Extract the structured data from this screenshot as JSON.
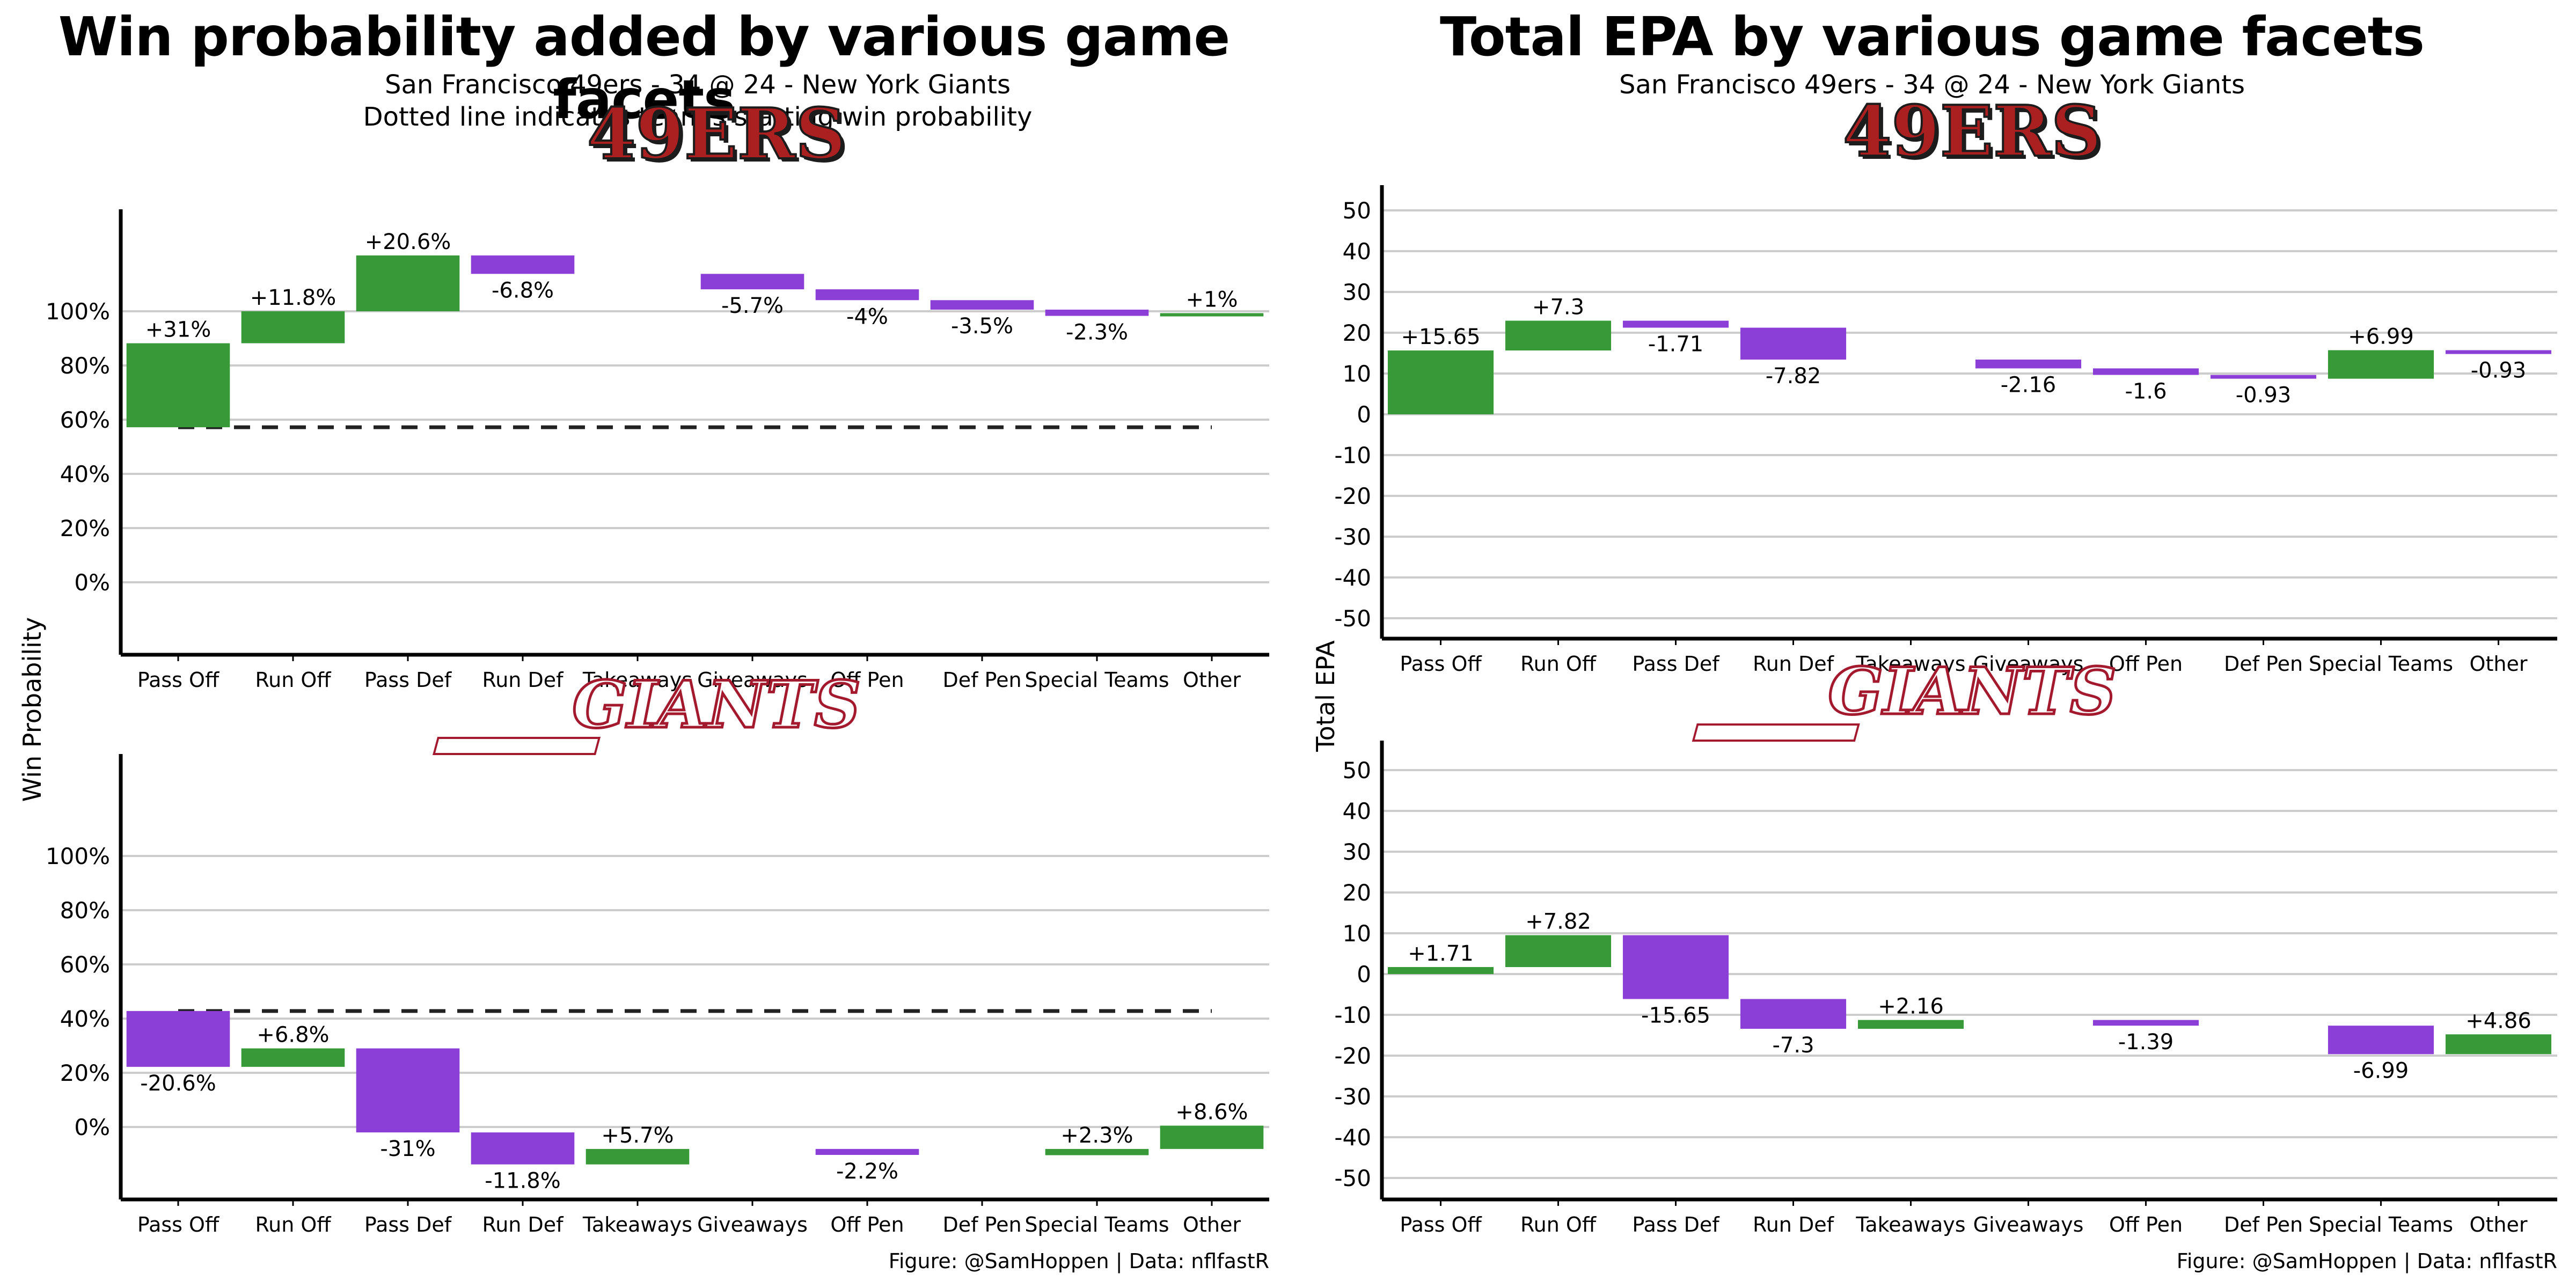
{
  "left_title": "Win probability added by various game facets",
  "left_subtitle_1": "San Francisco 49ers - 34 @ 24 - New York Giants",
  "left_subtitle_2": "Dotted line indicates team's starting win probability",
  "left_ylabel": "Win Probability",
  "right_title": "Total EPA by various game facets",
  "right_subtitle_1": "San Francisco 49ers - 34 @ 24 - New York Giants",
  "right_ylabel": "Total EPA",
  "caption": "Figure: @SamHoppen | Data: nflfastR",
  "logo_sf": "49ERS",
  "logo_nyg": "GIANTS",
  "colors": {
    "positive": "#379937",
    "negative": "#8c3fd6",
    "dotted": "#222222",
    "grid": "#cccccc",
    "logo_sf_fill": "#aa1f1f",
    "logo_nyg_stroke": "#a3192e"
  },
  "chart_data": [
    {
      "type": "waterfall",
      "team": "49ERS",
      "categories": [
        "Pass Off",
        "Run Off",
        "Pass Def",
        "Run Def",
        "Takeaways",
        "Giveaways",
        "Off Pen",
        "Def Pen",
        "Special Teams",
        "Other"
      ],
      "starts": [
        57.2,
        88.2,
        100,
        120.6,
        null,
        113.8,
        108.1,
        104.1,
        100.6,
        98.3
      ],
      "values": [
        31,
        11.8,
        20.6,
        -6.8,
        null,
        -5.7,
        -4,
        -3.5,
        -2.3,
        1
      ],
      "labels": [
        "+31%",
        "+11.8%",
        "+20.6%",
        "-6.8%",
        "",
        "-5.7%",
        "-4%",
        "-3.5%",
        "-2.3%",
        "+1%"
      ],
      "baseline": 57.2,
      "yticks": [
        "0%",
        "20%",
        "40%",
        "60%",
        "80%",
        "100%"
      ],
      "ylim": [
        -27,
        133
      ]
    },
    {
      "type": "waterfall",
      "team": "GIANTS",
      "categories": [
        "Pass Off",
        "Run Off",
        "Pass Def",
        "Run Def",
        "Takeaways",
        "Giveaways",
        "Off Pen",
        "Def Pen",
        "Special Teams",
        "Other"
      ],
      "starts": [
        42.8,
        22.2,
        29,
        -2,
        -13.8,
        null,
        -8.1,
        null,
        -10.4,
        -8.1
      ],
      "values": [
        -20.6,
        6.8,
        -31,
        -11.8,
        5.7,
        null,
        -2.2,
        null,
        2.3,
        8.6
      ],
      "labels": [
        "-20.6%",
        "+6.8%",
        "-31%",
        "-11.8%",
        "+5.7%",
        "",
        "-2.2%",
        "",
        "+2.3%",
        "+8.6%"
      ],
      "baseline": 42.8,
      "yticks": [
        "0%",
        "20%",
        "40%",
        "60%",
        "80%",
        "100%"
      ],
      "ylim": [
        -27,
        133
      ]
    },
    {
      "type": "waterfall",
      "team": "49ERS",
      "categories": [
        "Pass Off",
        "Run Off",
        "Pass Def",
        "Run Def",
        "Takeaways",
        "Giveaways",
        "Off Pen",
        "Def Pen",
        "Special Teams",
        "Other"
      ],
      "starts": [
        0,
        15.65,
        22.95,
        21.24,
        null,
        13.42,
        11.26,
        9.66,
        8.73,
        15.72
      ],
      "values": [
        15.65,
        7.3,
        -1.71,
        -7.82,
        null,
        -2.16,
        -1.6,
        -0.93,
        6.99,
        -0.93
      ],
      "labels": [
        "+15.65",
        "+7.3",
        "-1.71",
        "-7.82",
        "",
        "-2.16",
        "-1.6",
        "-0.93",
        "+6.99",
        "-0.93"
      ],
      "yticks": [
        -50,
        -40,
        -30,
        -20,
        -10,
        0,
        10,
        20,
        30,
        40,
        50
      ],
      "ylim": [
        -55,
        55
      ]
    },
    {
      "type": "waterfall",
      "team": "GIANTS",
      "categories": [
        "Pass Off",
        "Run Off",
        "Pass Def",
        "Run Def",
        "Takeaways",
        "Giveaways",
        "Off Pen",
        "Def Pen",
        "Special Teams",
        "Other"
      ],
      "starts": [
        0,
        1.71,
        9.53,
        -6.12,
        -13.42,
        null,
        -11.26,
        null,
        -12.65,
        -19.64
      ],
      "values": [
        1.71,
        7.82,
        -15.65,
        -7.3,
        2.16,
        null,
        -1.39,
        null,
        -6.99,
        4.86
      ],
      "labels": [
        "+1.71",
        "+7.82",
        "-15.65",
        "-7.3",
        "+2.16",
        "",
        "-1.39",
        "",
        "-6.99",
        "+4.86"
      ],
      "yticks": [
        -50,
        -40,
        -30,
        -20,
        -10,
        0,
        10,
        20,
        30,
        40,
        50
      ],
      "ylim": [
        -55,
        55
      ]
    }
  ]
}
